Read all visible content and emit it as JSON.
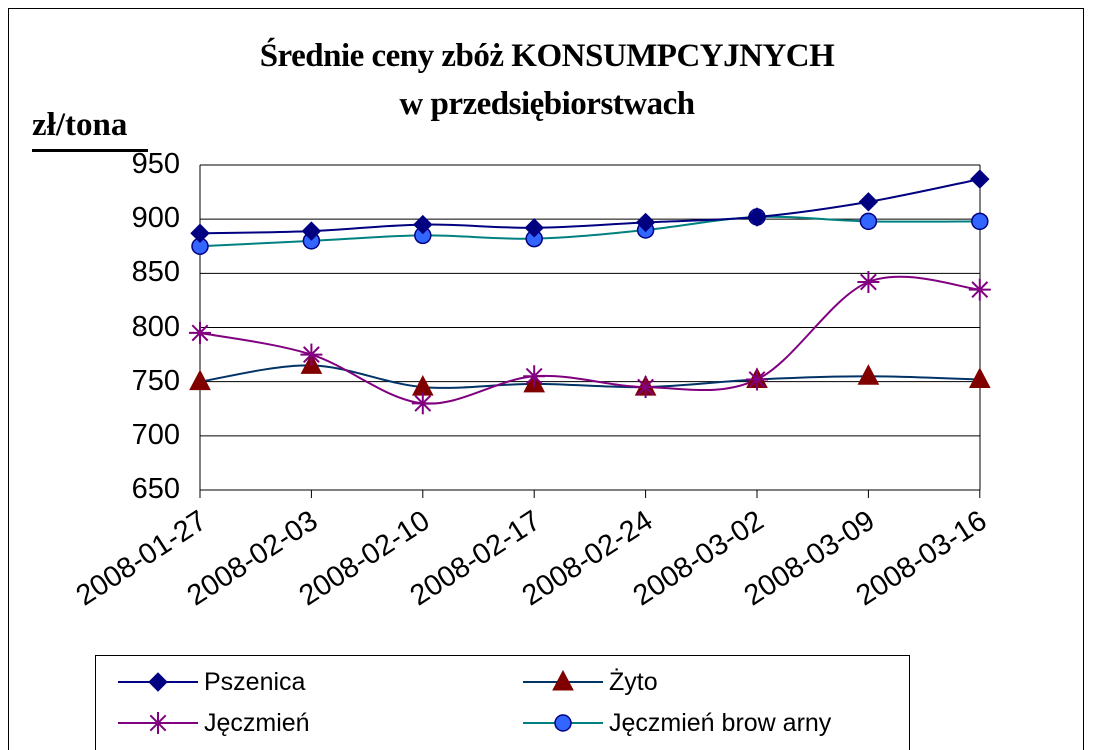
{
  "chart_data": {
    "type": "line",
    "title_line1": "Średnie ceny zbóż KONSUMPCYJNYCH",
    "title_line2": "w przedsiębiorstwach",
    "ylabel": "zł/tona",
    "xlabel": "",
    "ylim": [
      650,
      950
    ],
    "yticks": [
      "950",
      "900",
      "850",
      "800",
      "750",
      "700",
      "650"
    ],
    "categories": [
      "2008-01-27",
      "2008-02-03",
      "2008-02-10",
      "2008-02-17",
      "2008-02-24",
      "2008-03-02",
      "2008-03-09",
      "2008-03-16"
    ],
    "grid": true,
    "legend_position": "bottom",
    "series": [
      {
        "name": "Pszenica",
        "values": [
          887,
          889,
          895,
          892,
          897,
          902,
          916,
          937
        ],
        "color": "#000080",
        "marker": "diamond"
      },
      {
        "name": "Żyto",
        "values": [
          750,
          765,
          745,
          748,
          745,
          752,
          755,
          752
        ],
        "color": "#800000",
        "line_color": "#003366",
        "marker": "triangle"
      },
      {
        "name": "Jęczmień",
        "values": [
          795,
          775,
          730,
          755,
          745,
          752,
          842,
          835
        ],
        "color": "#800080",
        "marker": "star"
      },
      {
        "name": "Jęczmień brow arny",
        "values": [
          875,
          880,
          885,
          882,
          890,
          902,
          898,
          898
        ],
        "color": "#008080",
        "marker_fill": "#3366FF",
        "marker": "circle"
      }
    ]
  }
}
